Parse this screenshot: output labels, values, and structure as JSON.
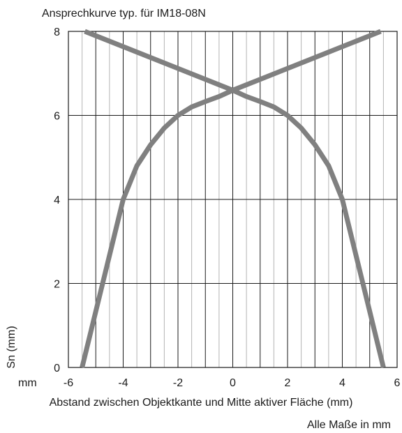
{
  "chart_data": {
    "type": "line",
    "title": "Ansprechkurve typ. für IM18-08N",
    "xlabel": "Abstand zwischen Objektkante und Mitte aktiver Fläche (mm)",
    "ylabel": "Sn (mm)",
    "x_unit_label": "mm",
    "footnote": "Alle Maße in mm",
    "xlim": [
      -6,
      6
    ],
    "ylim": [
      0,
      8
    ],
    "x_ticks": [
      "-6",
      "-4",
      "-2",
      "0",
      "2",
      "4",
      "6"
    ],
    "y_ticks": [
      "0",
      "2",
      "4",
      "6",
      "8"
    ],
    "grid": true,
    "series_color": "#808080",
    "series": [
      {
        "x": [
          -5.5,
          -4.0,
          -3.5,
          -3.0,
          -2.5,
          -2.0,
          -1.5,
          -1.0,
          -0.5,
          0.0,
          0.5,
          1.0,
          1.5,
          2.0,
          2.5,
          3.0,
          3.5,
          4.0,
          5.5
        ],
        "y": [
          0,
          4.0,
          4.8,
          5.3,
          5.7,
          6.0,
          6.2,
          6.33,
          6.45,
          6.6,
          6.45,
          6.33,
          6.2,
          6.0,
          5.7,
          5.3,
          4.8,
          4.0,
          0
        ]
      },
      {
        "x": [
          -5.4,
          0.0
        ],
        "y": [
          8.0,
          6.6
        ]
      },
      {
        "x": [
          0.0,
          5.4
        ],
        "y": [
          6.6,
          8.0
        ]
      }
    ]
  }
}
